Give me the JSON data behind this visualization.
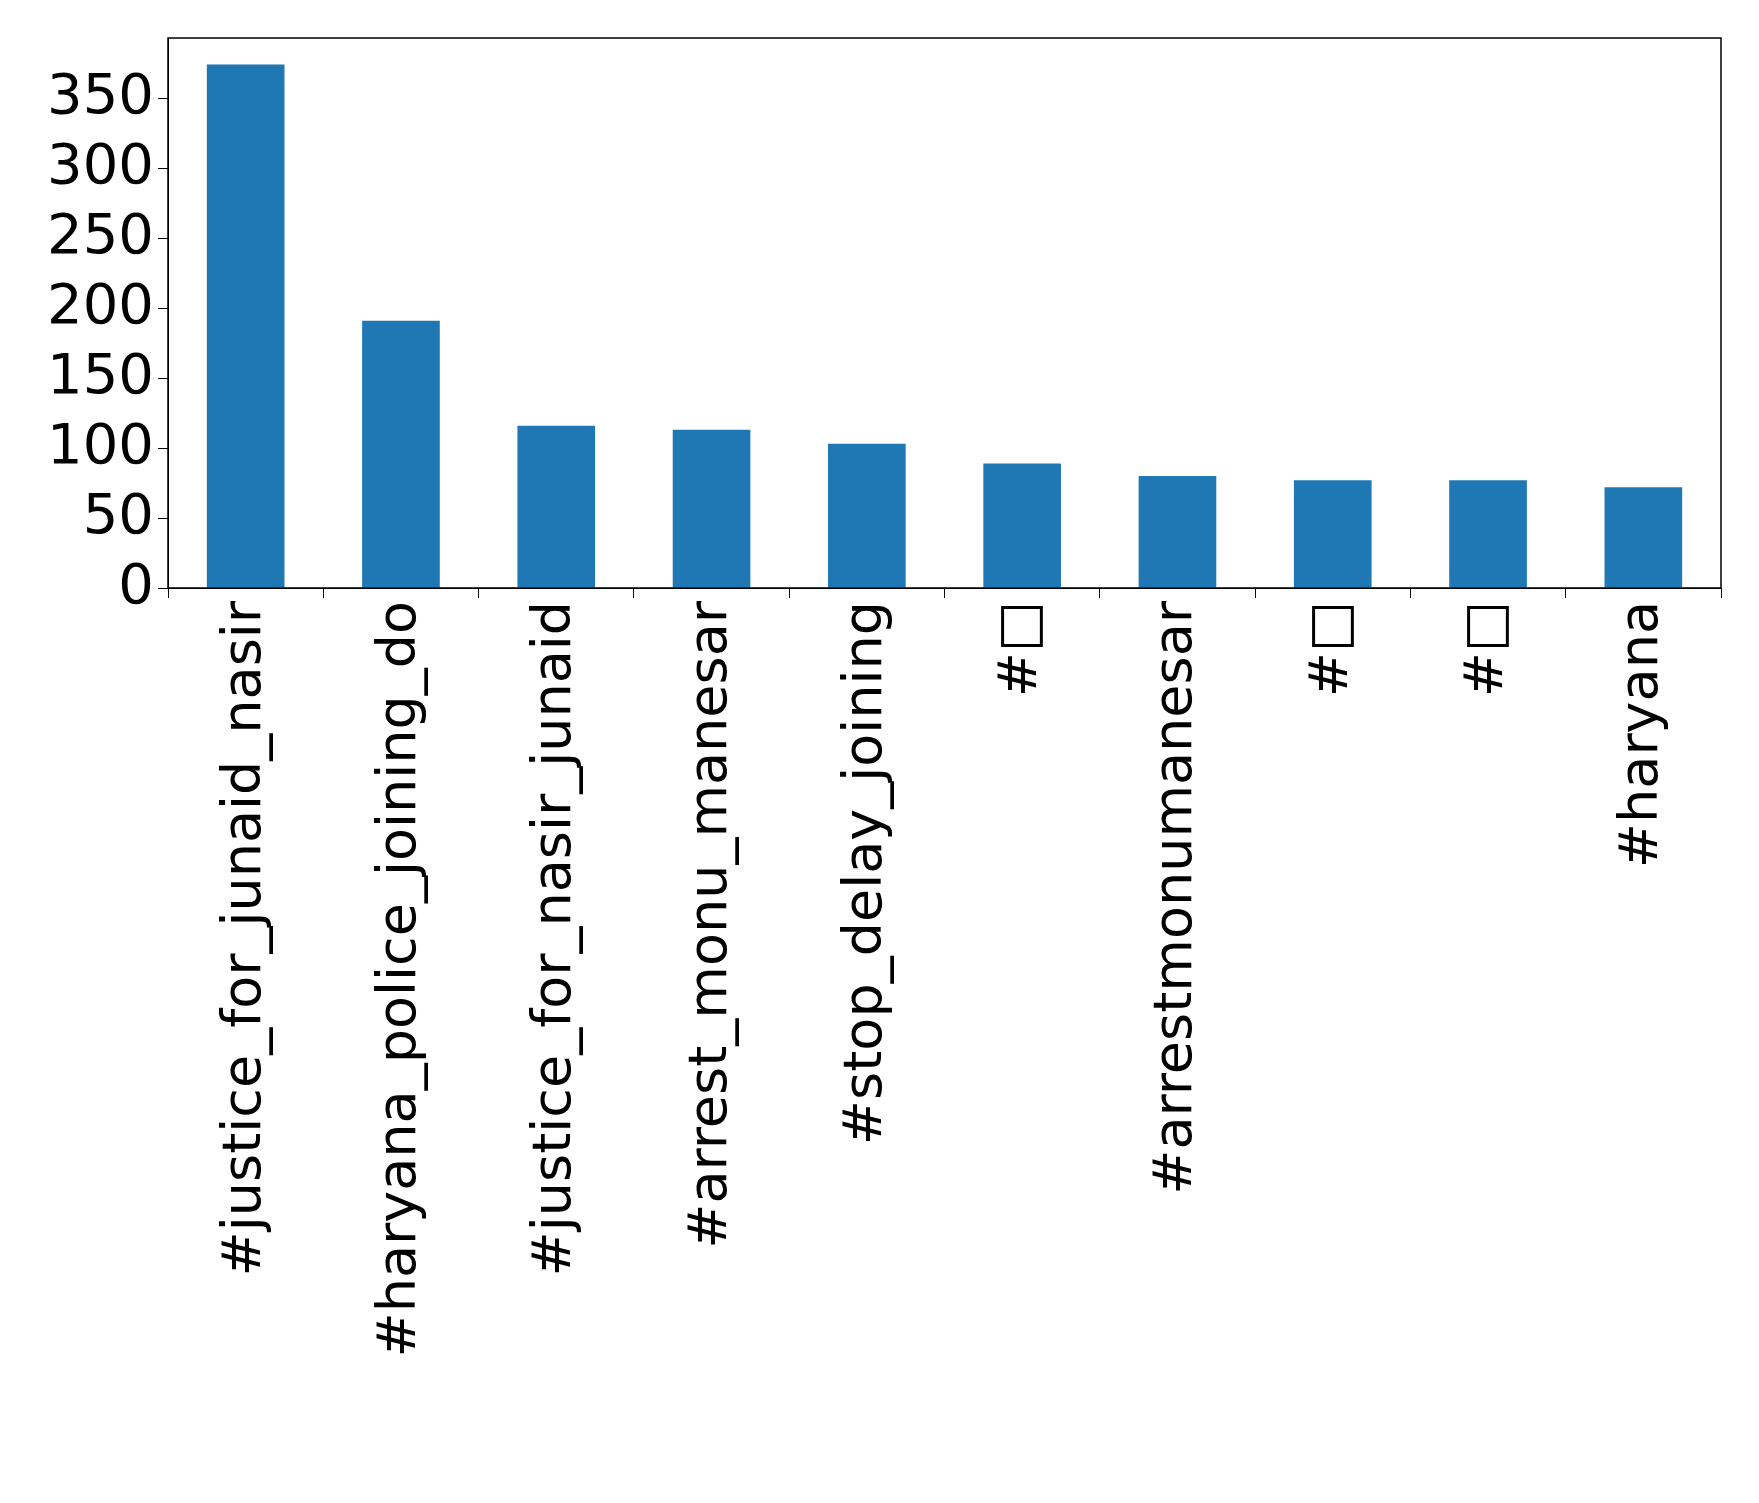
{
  "chart_data": {
    "type": "bar",
    "categories": [
      "#justice_for_junaid_nasir",
      "#haryana_police_joining_do",
      "#justice_for_nasir_junaid",
      "#arrest_monu_manesar",
      "#stop_delay_joining",
      "#□",
      "#arrestmonumanesar",
      "#□",
      "#□",
      "#haryana"
    ],
    "values": [
      374,
      191,
      116,
      113,
      103,
      89,
      80,
      77,
      77,
      72
    ],
    "color": "#1f77b4",
    "ylim": [
      0,
      393
    ],
    "yticks": [
      0,
      50,
      100,
      150,
      200,
      250,
      300,
      350
    ],
    "grid": false,
    "legend": false
  }
}
